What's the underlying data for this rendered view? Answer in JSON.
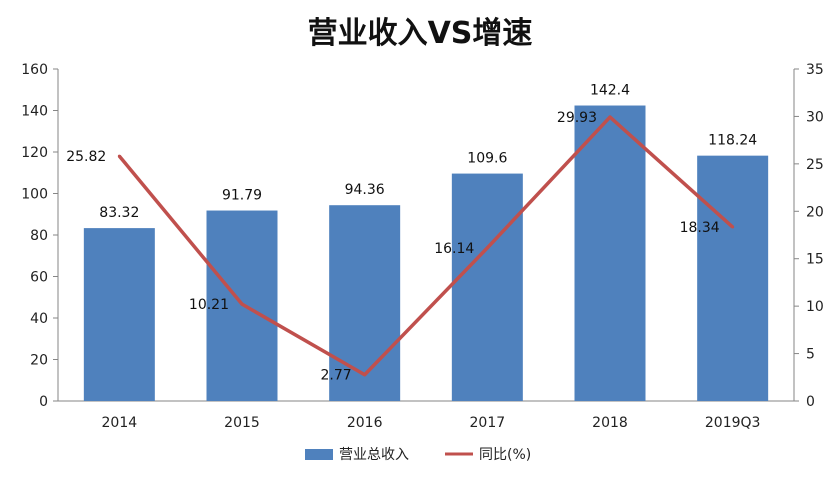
{
  "chart_data": {
    "type": "bar",
    "title": "营业收入VS增速",
    "categories": [
      "2014",
      "2015",
      "2016",
      "2017",
      "2018",
      "2019Q3"
    ],
    "series": [
      {
        "name": "营业总收入",
        "type": "bar",
        "axis": "left",
        "color": "#4F81BD",
        "values": [
          83.32,
          91.79,
          94.36,
          109.6,
          142.4,
          118.24
        ],
        "labels": [
          "83.32",
          "91.79",
          "94.36",
          "109.6",
          "142.4",
          "118.24"
        ]
      },
      {
        "name": "同比(%)",
        "type": "line",
        "axis": "right",
        "color": "#C0504D",
        "values": [
          25.82,
          10.21,
          2.77,
          16.14,
          29.93,
          18.34
        ],
        "labels": [
          "25.82",
          "10.21",
          "2.77",
          "16.14",
          "29.93",
          "18.34"
        ]
      }
    ],
    "y_left": {
      "min": 0,
      "max": 160,
      "ticks": [
        "0",
        "20",
        "40",
        "60",
        "80",
        "100",
        "120",
        "140",
        "160"
      ]
    },
    "y_right": {
      "min": 0,
      "max": 35,
      "ticks": [
        "0",
        "5",
        "10",
        "15",
        "20",
        "25",
        "30",
        "35"
      ]
    },
    "grid": false,
    "legend_position": "bottom"
  }
}
